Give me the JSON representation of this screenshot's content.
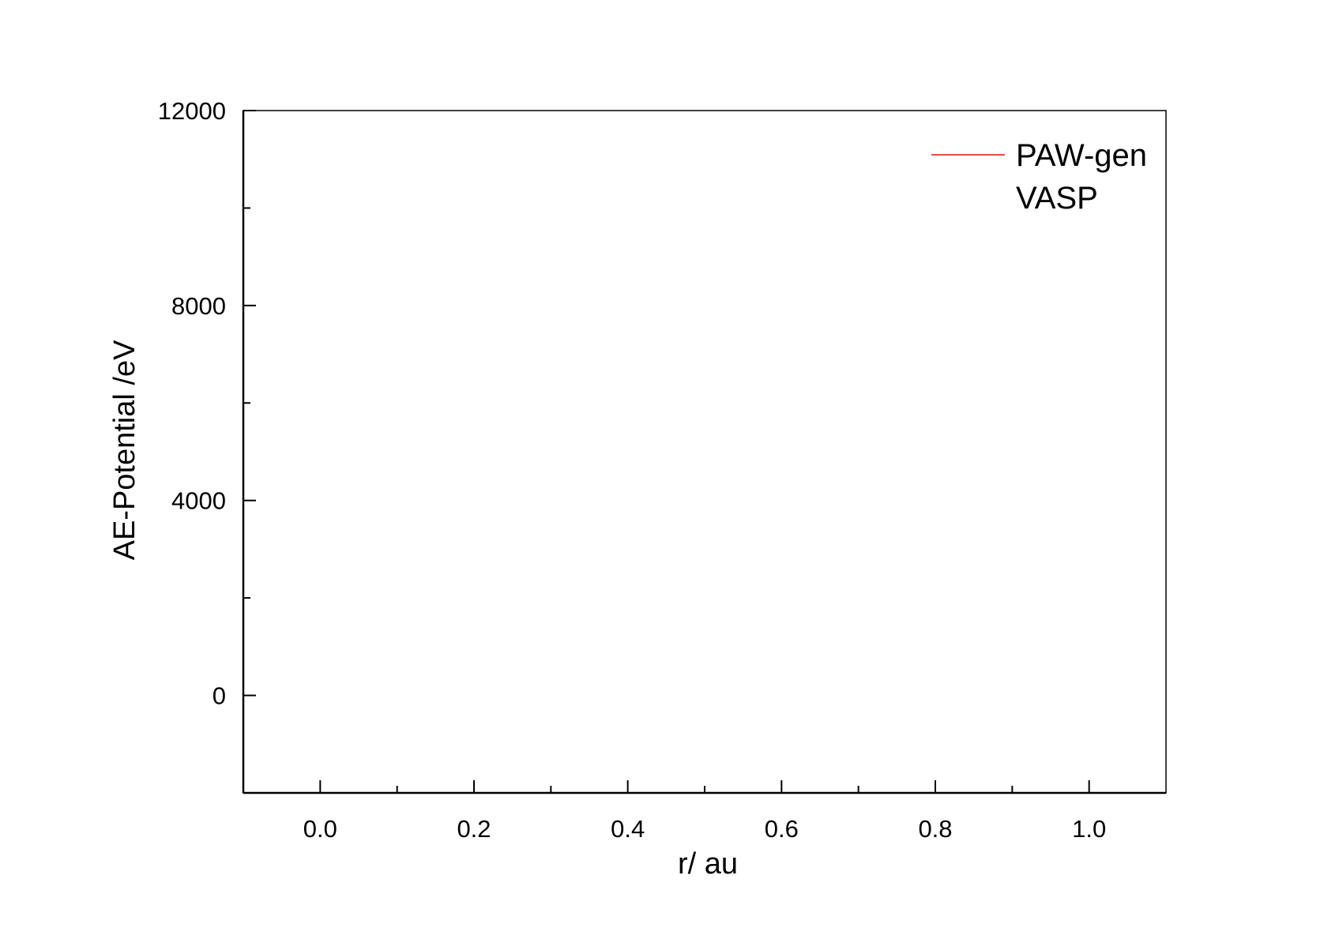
{
  "chart_data": {
    "type": "line",
    "title": "",
    "xlabel": "r/ au",
    "ylabel": "AE-Potential /eV",
    "xlim": [
      -0.1,
      1.1
    ],
    "ylim": [
      -2000,
      12000
    ],
    "x_major_ticks": [
      0.0,
      0.2,
      0.4,
      0.6,
      0.8,
      1.0
    ],
    "x_tick_labels": [
      "0.0",
      "0.2",
      "0.4",
      "0.6",
      "0.8",
      "1.0"
    ],
    "x_minor_ticks": [
      0.1,
      0.3,
      0.5,
      0.7,
      0.9
    ],
    "y_major_ticks": [
      0,
      4000,
      8000,
      12000
    ],
    "y_tick_labels": [
      "0",
      "4000",
      "8000",
      "12000"
    ],
    "y_minor_ticks": [
      2000,
      6000,
      10000
    ],
    "grid": false,
    "legend_position": "top-right",
    "series": [
      {
        "name": "PAW-gen",
        "color": "#ff0000",
        "x": [],
        "y": []
      },
      {
        "name": "VASP",
        "color": "#000000",
        "x": [],
        "y": []
      }
    ]
  }
}
